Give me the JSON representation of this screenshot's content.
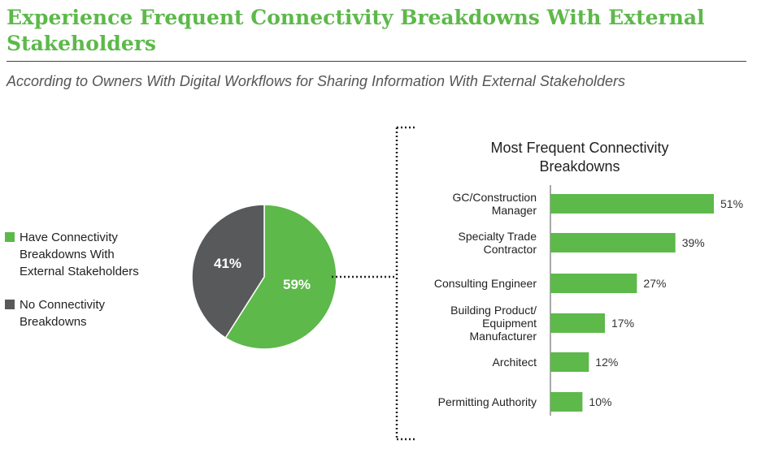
{
  "header": {
    "title": "Experience Frequent Connectivity Breakdowns With External Stakeholders",
    "subtitle": "According to Owners With Digital Workflows for Sharing Information With External Stakeholders"
  },
  "colors": {
    "green": "#5db94a",
    "gray": "#58595b",
    "title_green": "#5db94a"
  },
  "legend": [
    {
      "label": "Have Connectivity Breakdowns With External Stakeholders",
      "color": "#5db94a"
    },
    {
      "label": "No Connectivity Breakdowns",
      "color": "#58595b"
    }
  ],
  "chart_data": [
    {
      "type": "pie",
      "slices": [
        {
          "label": "Have Connectivity Breakdowns With External Stakeholders",
          "value": 59,
          "display": "59%",
          "color": "#5db94a"
        },
        {
          "label": "No Connectivity Breakdowns",
          "value": 41,
          "display": "41%",
          "color": "#58595b"
        }
      ]
    },
    {
      "type": "bar",
      "orientation": "horizontal",
      "title": "Most Frequent Connectivity Breakdowns",
      "categories": [
        "GC/Construction Manager",
        "Specialty Trade Contractor",
        "Consulting Engineer",
        "Building Product/ Equipment Manufacturer",
        "Architect",
        "Permitting Authority"
      ],
      "values": [
        51,
        39,
        27,
        17,
        12,
        10
      ],
      "value_labels": [
        "51%",
        "39%",
        "27%",
        "17%",
        "12%",
        "10%"
      ],
      "color": "#5db94a",
      "grid": false
    }
  ]
}
